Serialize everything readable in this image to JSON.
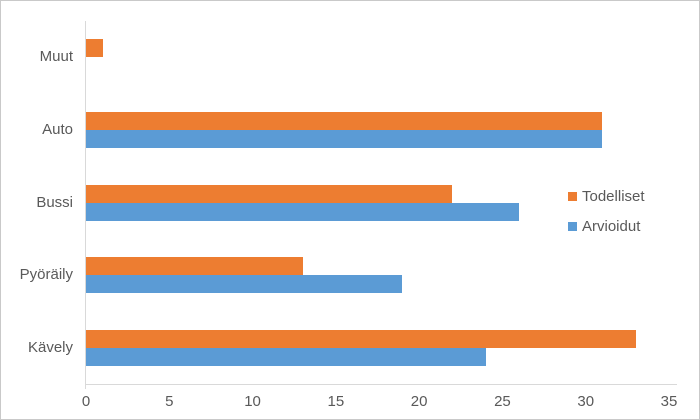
{
  "chart_data": {
    "type": "bar",
    "orientation": "horizontal",
    "title": "",
    "xlabel": "",
    "ylabel": "",
    "categories": [
      "Muut",
      "Auto",
      "Bussi",
      "Pyöräily",
      "Kävely"
    ],
    "series": [
      {
        "name": "Todelliset",
        "color": "#ED7D31",
        "values": [
          1,
          31,
          22,
          13,
          33
        ]
      },
      {
        "name": "Arvioidut",
        "color": "#5B9BD5",
        "values": [
          0,
          31,
          26,
          19,
          24
        ]
      }
    ],
    "xlim": [
      0,
      35
    ],
    "x_ticks": [
      0,
      5,
      10,
      15,
      20,
      25,
      30,
      35
    ],
    "grid": false,
    "legend_position": "right-middle"
  },
  "colors": {
    "axis_line": "#d9d9d9",
    "text": "#595959",
    "background": "#ffffff",
    "border": "#c9c9c9"
  }
}
